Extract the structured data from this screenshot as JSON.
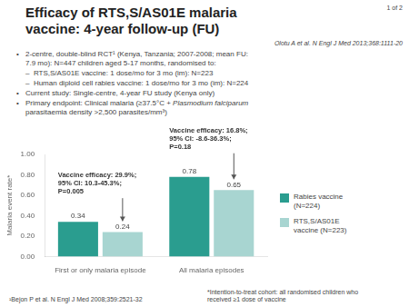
{
  "chart_data": {
    "type": "bar",
    "header": "1 of 2",
    "title": [
      "Efficacy of RTS,S/AS01E malaria",
      "vaccine: 4-year follow-up (FU)"
    ],
    "subtitle": "Olotu A et al. N Engl J Med 2013;368:1111-20",
    "bullet": "•",
    "bullets": [
      {
        "text": [
          "2-centre, double-blind RCT¹ (Kenya, Tanzania; 2007-2008; mean FU:\n7.9 mo): N=447 children aged 5-17 months, randomised to:"
        ],
        "sub": [
          "–  RTS,S/AS01E vaccine: 1 dose/mo for 3 mo (im): N=223",
          "–  Human diploid cell rabies vaccine: 1 dose/mo for 3 mo (im): N=224"
        ]
      },
      {
        "text": [
          "Current study: Single-centre, 4-year FU study (Kenya only)"
        ]
      },
      {
        "text": [
          "Primary endpoint: Clinical malaria (≥37.5°C + ",
          "Plasmodium falciparum",
          "\nparasitaemia density >2,500 parasites/mm³)"
        ]
      }
    ],
    "categories": [
      "First or only malaria episode",
      "All malaria episodes"
    ],
    "series": [
      {
        "name": "Rabies vaccine\n(N=224)",
        "color": "#2a9d8f",
        "values": [
          0.34,
          0.78
        ]
      },
      {
        "name": "RTS,S/AS01E\nvaccine (N=223)",
        "color": "#a8d5d1",
        "values": [
          0.24,
          0.65
        ]
      }
    ],
    "ylabel": "Malaria event rate*",
    "ylim": [
      0,
      1.0
    ],
    "yticks": [
      {
        "value": 0,
        "label": "0.00"
      },
      {
        "value": 0.2,
        "label": "0.20"
      },
      {
        "value": 0.4,
        "label": "0.40"
      },
      {
        "value": 0.6,
        "label": "0.60"
      },
      {
        "value": 0.8,
        "label": "0.80"
      },
      {
        "value": 1.0,
        "label": "1.00"
      }
    ],
    "grid": false,
    "legend": "right",
    "data_labels": true,
    "annotations": [
      {
        "text": "Vaccine efficacy: 29.9%;\n95% CI: 10.3-45.3%;\nP=0.005",
        "category": "First or only malaria episode",
        "series": "RTS,S/AS01E\nvaccine (N=223)"
      },
      {
        "text": "Vaccine efficacy: 16.8%;\n95% CI: -8.6-36.3%;\nP=0.18",
        "category": "All malaria episodes",
        "series": "RTS,S/AS01E\nvaccine (N=223)"
      }
    ],
    "footnotes": [
      "¹Bejon P et al. N Engl J Med 2008;359:2521-32",
      "*Intention-to-treat cohort: all randomised children who\nreceived ≥1 dose of vaccine"
    ]
  }
}
